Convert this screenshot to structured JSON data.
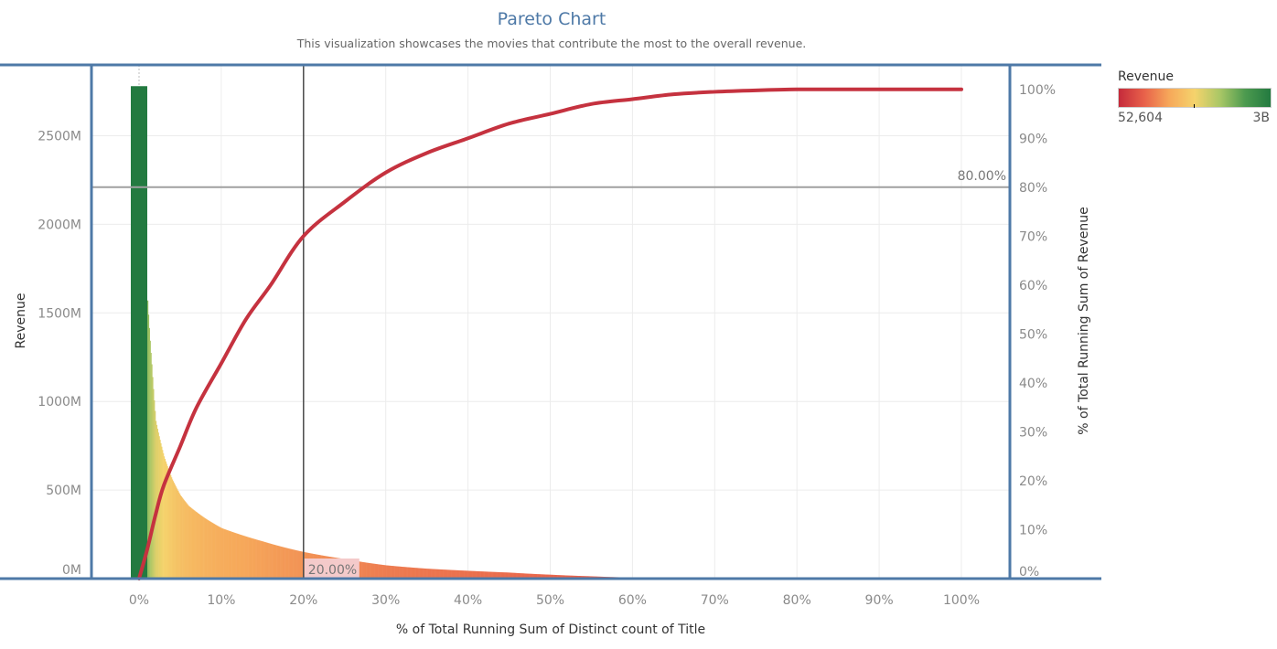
{
  "header": {
    "title": "Pareto Chart",
    "subtitle": "This visualization showcases the movies that contribute the most to the overall revenue."
  },
  "legend": {
    "title": "Revenue",
    "min_label": "52,604",
    "max_label": "3B",
    "colors": [
      "#c52a3b",
      "#e8614a",
      "#f6a85a",
      "#f5d36c",
      "#a9c766",
      "#4c9a4f",
      "#237a40"
    ]
  },
  "colors": {
    "frame": "#4e79a7",
    "curve": "#c5323f",
    "reference_line": "#a0a0a0",
    "target_line": "#4a4a4a",
    "highlight_box": "#f4caca"
  },
  "chart_data": {
    "type": "bar",
    "title": "Pareto Chart",
    "xlabel": "% of Total Running Sum of Distinct count of Title",
    "ylabel": "Revenue",
    "y2label": "% of Total Running Sum of Revenue",
    "xlim": [
      0,
      100
    ],
    "ylim": [
      0,
      2900
    ],
    "y2lim": [
      0,
      105
    ],
    "x_ticks": [
      "0%",
      "10%",
      "20%",
      "30%",
      "40%",
      "50%",
      "60%",
      "70%",
      "80%",
      "90%",
      "100%"
    ],
    "y_ticks": [
      "0M",
      "500M",
      "1000M",
      "1500M",
      "2000M",
      "2500M"
    ],
    "y2_ticks": [
      "0%",
      "10%",
      "20%",
      "30%",
      "40%",
      "50%",
      "60%",
      "70%",
      "80%",
      "90%",
      "100%"
    ],
    "top_bar": {
      "x_start": -1,
      "x_end": 1,
      "revenue_m": 2780
    },
    "revenue_distribution": {
      "x_pct": [
        1,
        1.5,
        2,
        3,
        4,
        5,
        6,
        8,
        10,
        15,
        20,
        25,
        30,
        35,
        40,
        45,
        50,
        55,
        60,
        65
      ],
      "revenue_m": [
        1570,
        1210,
        890,
        690,
        560,
        470,
        410,
        340,
        285,
        210,
        150,
        110,
        75,
        56,
        44,
        34,
        22,
        13,
        6,
        1
      ]
    },
    "cumulative_curve": {
      "x_pct": [
        0,
        1,
        2,
        3,
        5,
        7,
        10,
        13,
        16,
        20,
        25,
        30,
        35,
        40,
        45,
        50,
        55,
        60,
        65,
        70,
        75,
        80,
        85,
        90,
        95,
        100
      ],
      "cum_pct": [
        0,
        6,
        13,
        19,
        27,
        35,
        44,
        53,
        60,
        70,
        77,
        83,
        87,
        90,
        93,
        95,
        97,
        98,
        99,
        99.5,
        99.8,
        100,
        100,
        100,
        100,
        100
      ]
    },
    "reference_lines": [
      {
        "axis": "y2",
        "value": 80,
        "label": "80.00%"
      },
      {
        "axis": "x",
        "value": 20,
        "label": "20.00%"
      }
    ],
    "color_legend": "Revenue",
    "grid": true,
    "legend_position": "top-right"
  }
}
